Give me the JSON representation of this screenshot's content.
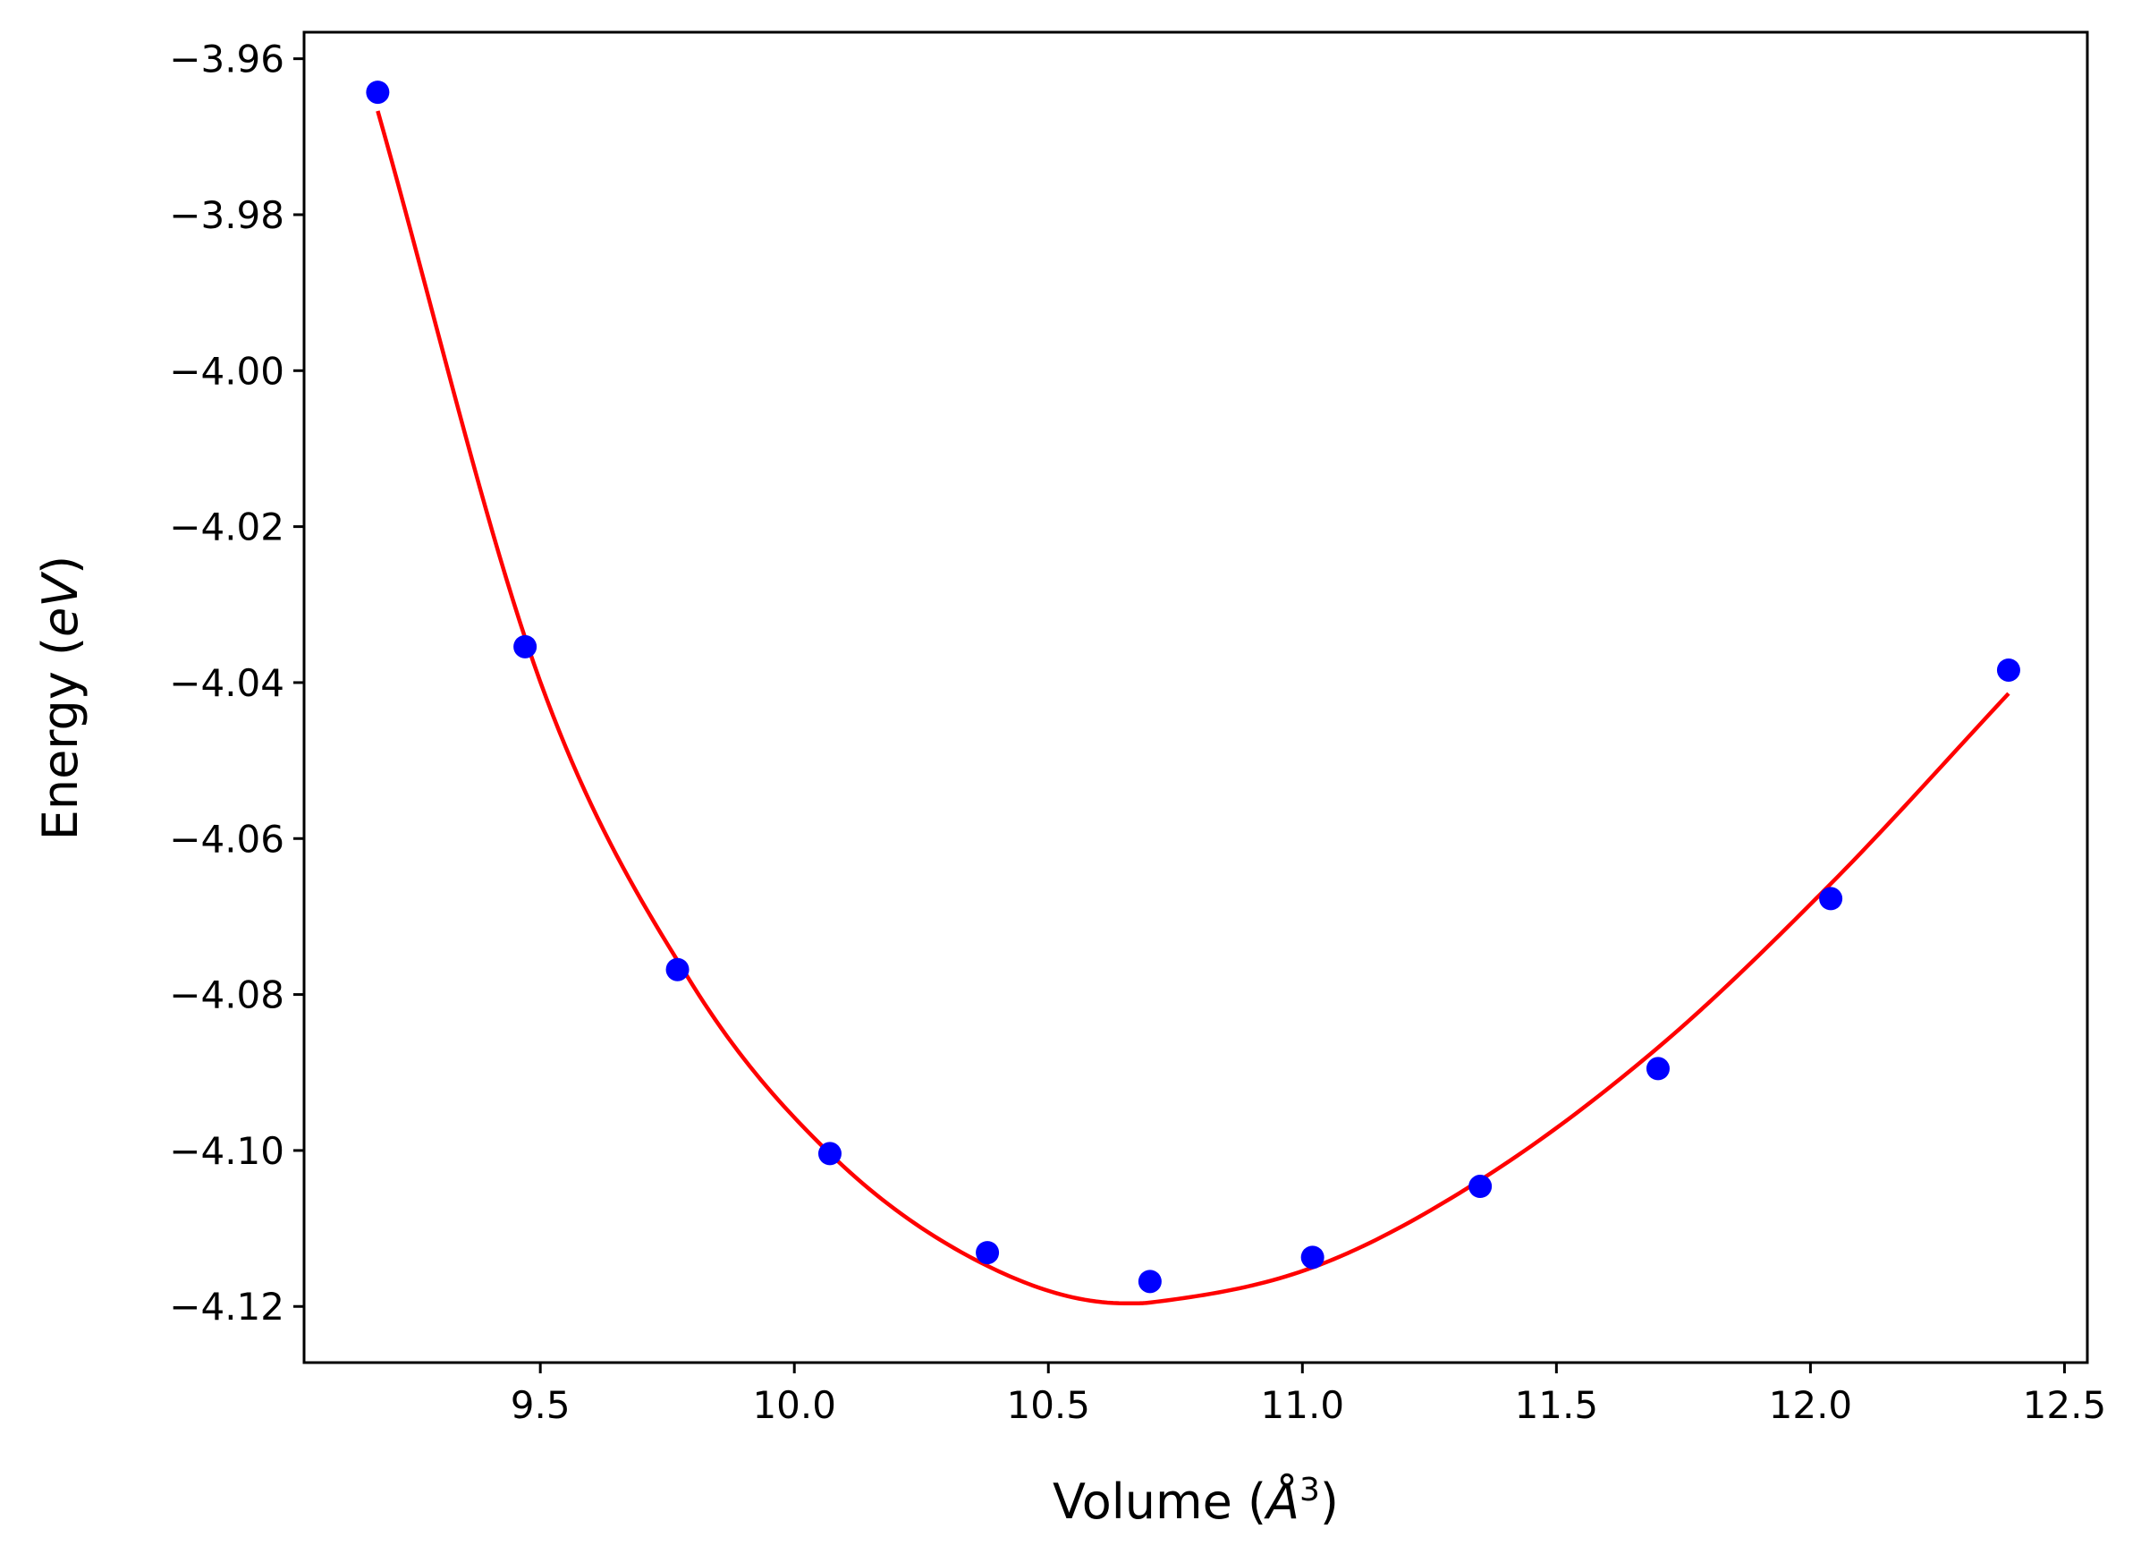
{
  "chart_data": {
    "type": "scatter",
    "xlabel": "Volume (Å³)",
    "xlabel_parts": {
      "prefix": "Volume (",
      "unit": "Å",
      "exponent": "3",
      "suffix": ")"
    },
    "ylabel": "Energy (eV)",
    "ylabel_parts": {
      "prefix": "Energy (",
      "unit": "eV",
      "suffix": ")"
    },
    "xlim": [
      9.035,
      12.545
    ],
    "ylim": [
      -4.1272,
      -3.9566
    ],
    "xticks": [
      9.5,
      10.0,
      10.5,
      11.0,
      11.5,
      12.0,
      12.5
    ],
    "xtick_labels": [
      "9.5",
      "10.0",
      "10.5",
      "11.0",
      "11.5",
      "12.0",
      "12.5"
    ],
    "yticks": [
      -3.96,
      -3.98,
      -4.0,
      -4.02,
      -4.04,
      -4.06,
      -4.08,
      -4.1,
      -4.12
    ],
    "ytick_labels": [
      "−3.96",
      "−3.98",
      "−4.00",
      "−4.02",
      "−4.04",
      "−4.06",
      "−4.08",
      "−4.10",
      "−4.12"
    ],
    "grid": false,
    "series": [
      {
        "kind": "scatter",
        "color": "#0000ff",
        "x": [
          9.18,
          9.47,
          9.77,
          10.07,
          10.38,
          10.7,
          11.02,
          11.35,
          11.7,
          12.04,
          12.39
        ],
        "y": [
          -3.9643,
          -4.0354,
          -4.0768,
          -4.1004,
          -4.1131,
          -4.1168,
          -4.1137,
          -4.1046,
          -4.0895,
          -4.0677,
          -4.0384
        ]
      },
      {
        "kind": "line",
        "color": "#ff0000",
        "x": [
          9.18,
          9.5,
          9.8,
          10.07,
          10.38,
          10.65,
          10.7,
          11.02,
          11.35,
          11.7,
          12.04,
          12.39
        ],
        "y": [
          -3.9667,
          -4.0399,
          -4.0788,
          -4.1004,
          -4.1148,
          -4.1196,
          -4.1195,
          -4.115,
          -4.1038,
          -4.0868,
          -4.0658,
          -4.0414
        ]
      }
    ]
  }
}
